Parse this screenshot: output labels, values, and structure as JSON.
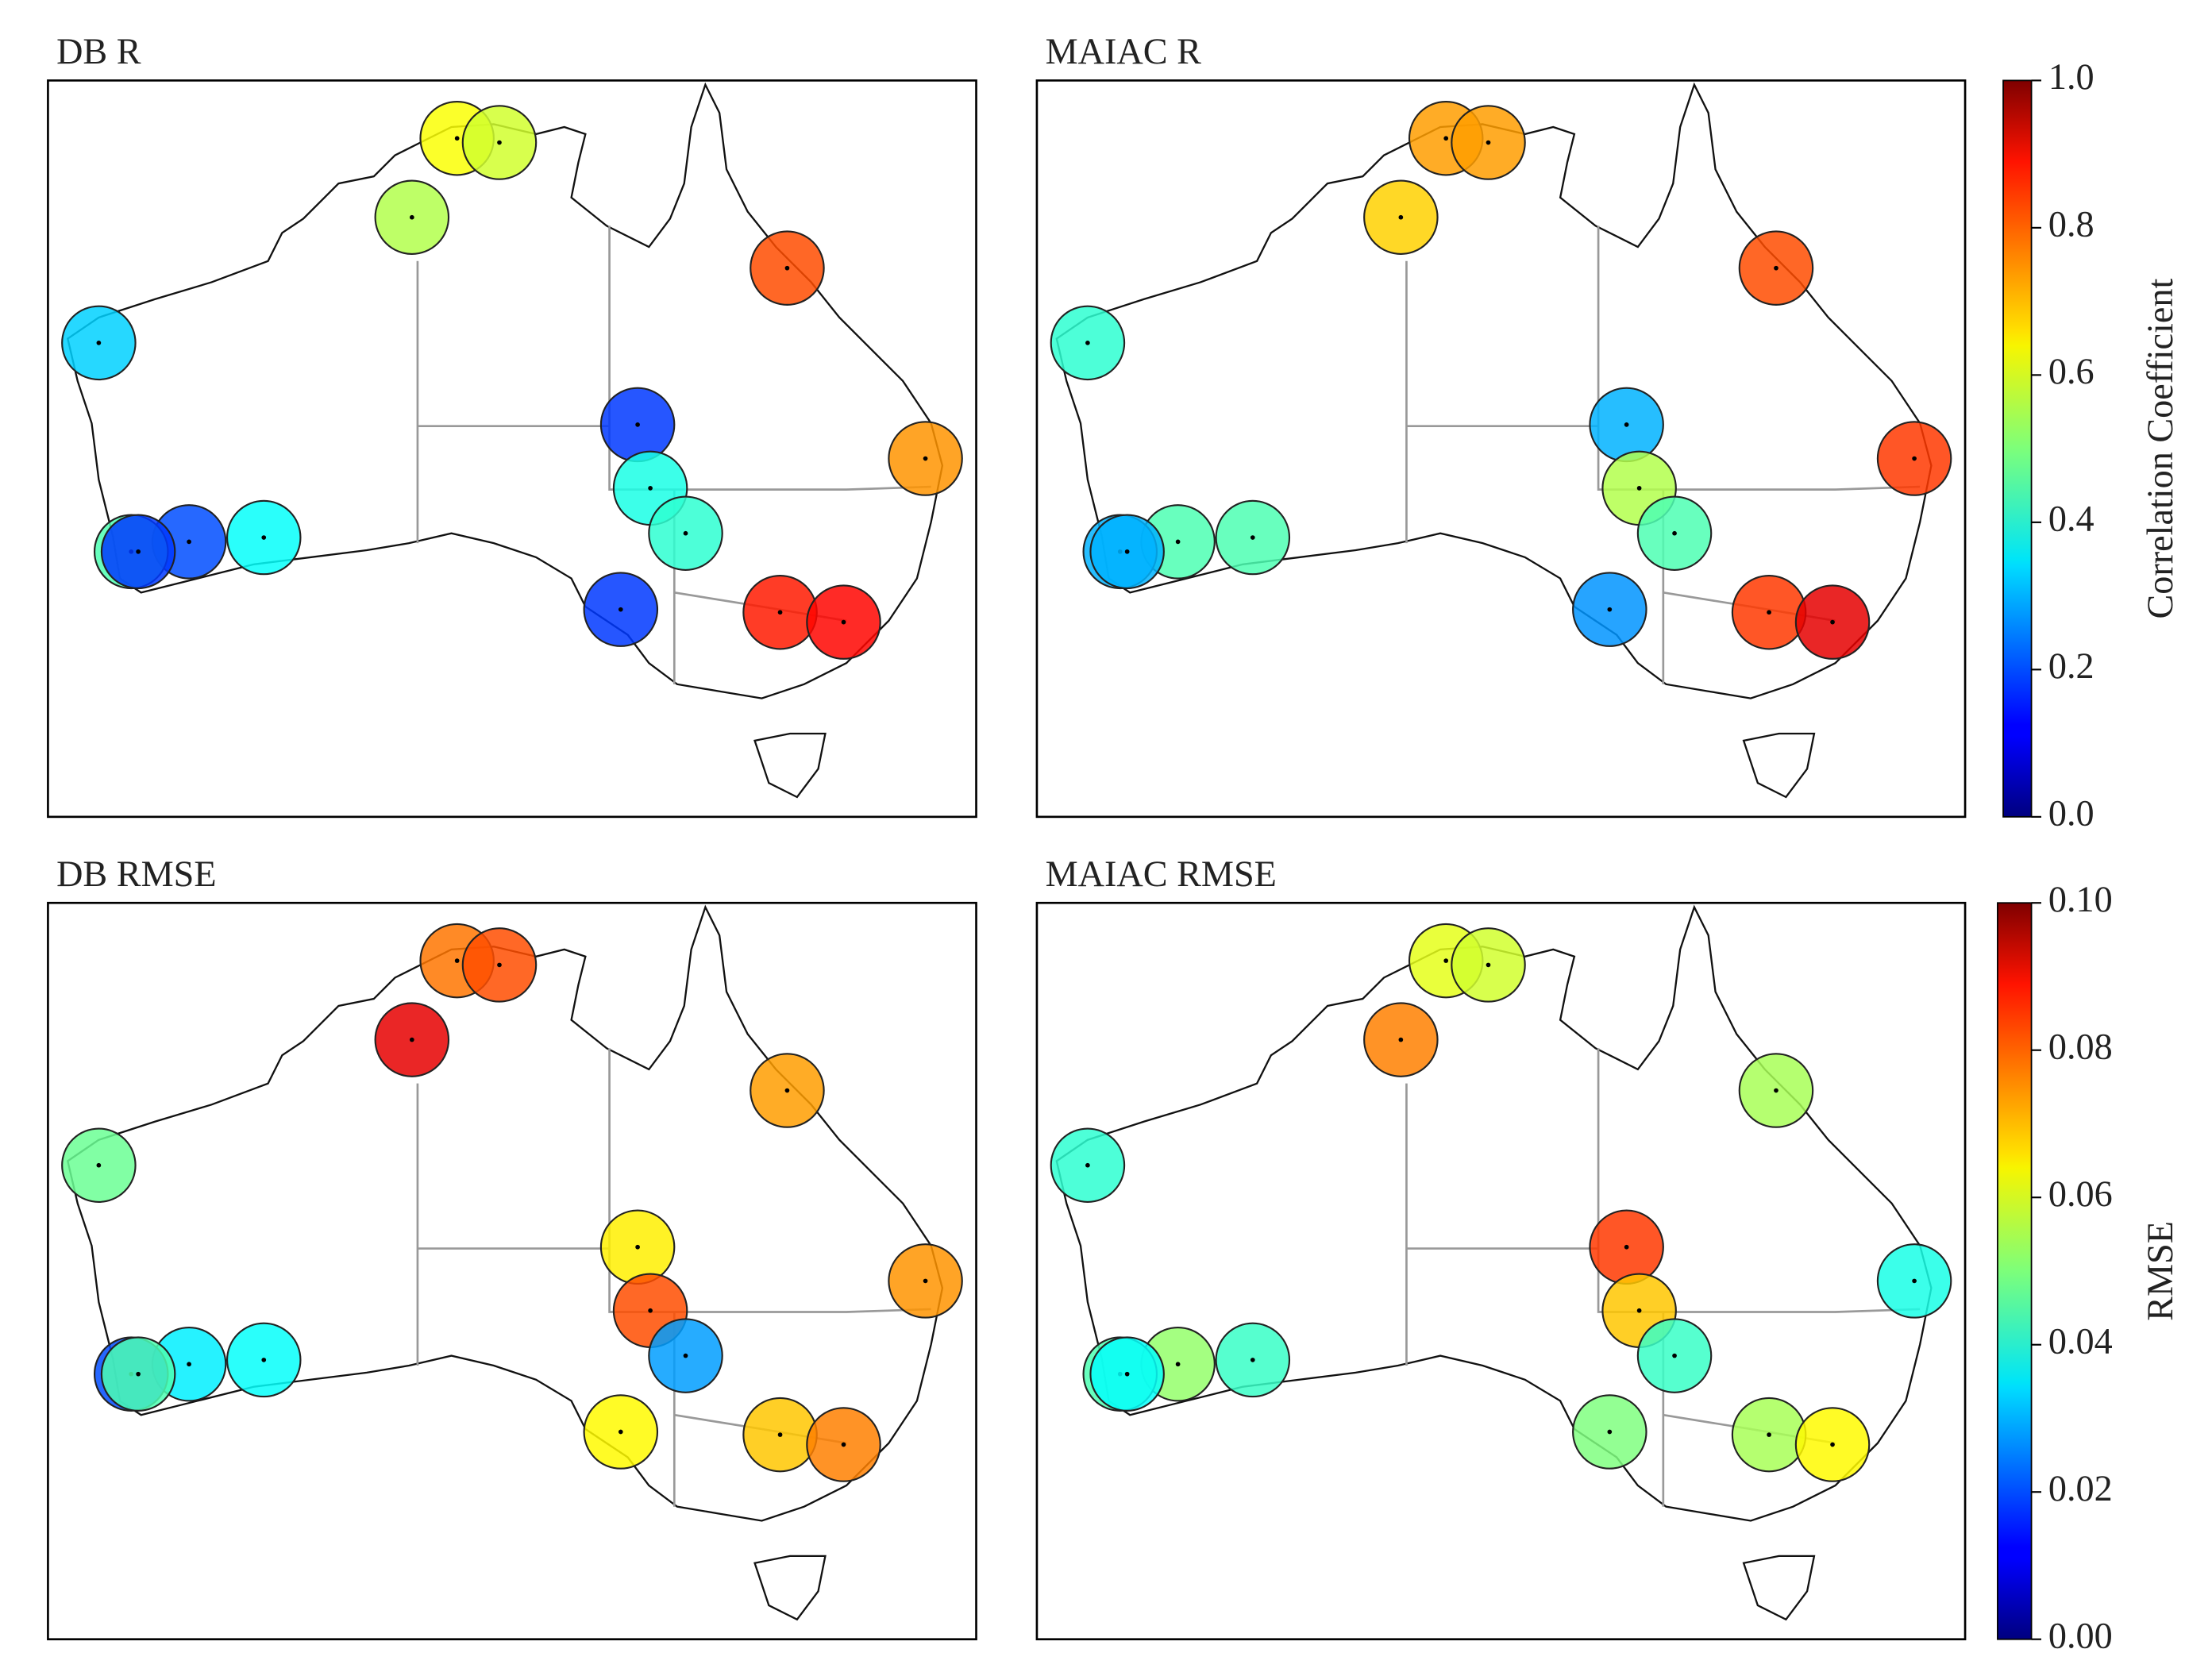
{
  "colorbars": [
    {
      "label": "Correlation Coefficient",
      "lim": [
        0,
        1
      ],
      "ticks": [
        {
          "value": 0,
          "label": "0.0"
        },
        0.2,
        0.4,
        0.6,
        0.8,
        {
          "value": 1,
          "label": "1.0"
        }
      ],
      "panels": [
        {
          "title": "DB R",
          "values": [
            0.62,
            0.58,
            0.55,
            0.8,
            0.33,
            0.18,
            0.73,
            0.4,
            0.42,
            0.38,
            0.2,
            0.45,
            0.18,
            0.18,
            0.85,
            0.87
          ]
        },
        {
          "title": "MAIAC R",
          "values": [
            0.72,
            0.72,
            0.67,
            0.8,
            0.42,
            0.3,
            0.82,
            0.55,
            0.45,
            0.45,
            0.45,
            0.3,
            0.3,
            0.27,
            0.82,
            0.9
          ]
        }
      ]
    },
    {
      "label": "RMSE",
      "lim": [
        0,
        0.1
      ],
      "ticks": [
        {
          "value": 0,
          "label": "0.00"
        },
        {
          "value": 0.02,
          "label": "0.02"
        },
        {
          "value": 0.04,
          "label": "0.04"
        },
        {
          "value": 0.06,
          "label": "0.06"
        },
        {
          "value": 0.08,
          "label": "0.08"
        },
        {
          "value": 0.1,
          "label": "0.10"
        }
      ],
      "panels": [
        {
          "title": "DB RMSE",
          "values": [
            0.076,
            0.08,
            0.09,
            0.072,
            0.048,
            0.064,
            0.073,
            0.08,
            0.028,
            0.038,
            0.036,
            0.02,
            0.045,
            0.063,
            0.068,
            0.075
          ]
        },
        {
          "title": "MAIAC RMSE",
          "values": [
            0.06,
            0.058,
            0.075,
            0.054,
            0.042,
            0.082,
            0.04,
            0.068,
            0.043,
            0.043,
            0.052,
            0.045,
            0.038,
            0.05,
            0.054,
            0.063
          ]
        }
      ]
    }
  ]
}
